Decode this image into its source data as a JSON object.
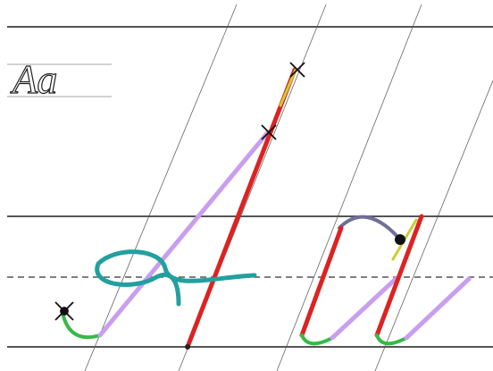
{
  "sample": "Аа"
}
